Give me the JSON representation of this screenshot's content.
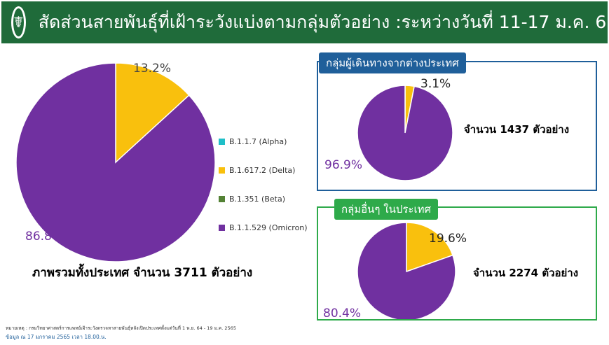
{
  "header": {
    "title": "สัดส่วนสายพันธุ์ที่เฝ้าระวังแบ่งตามกลุ่มตัวอย่าง :ระหว่างวันที่ 11-17 ม.ค. 65",
    "logo_icon": "moph-caduceus-icon"
  },
  "colors": {
    "header": "#1f6b3a",
    "delta": "#f9c00d",
    "omicron": "#7030a0",
    "alpha": "#1fbfc8",
    "beta": "#548235",
    "blue": "#1f5f9a",
    "green": "#2eaa4a"
  },
  "legend": [
    {
      "label": "B.1.1.7 (Alpha)",
      "color": "#1fbfc8"
    },
    {
      "label": "B.1.617.2 (Delta)",
      "color": "#f9c00d"
    },
    {
      "label": "B.1.351 (Beta)",
      "color": "#548235"
    },
    {
      "label": "B.1.1.529 (Omicron)",
      "color": "#7030a0"
    }
  ],
  "chart_data": [
    {
      "type": "pie",
      "name": "ภาพรวมทั้งประเทศ",
      "labels": [
        "B.1.617.2 (Delta)",
        "B.1.1.529 (Omicron)"
      ],
      "values": [
        13.2,
        86.8
      ],
      "value_labels": [
        "13.2%",
        "86.8%"
      ]
    },
    {
      "type": "pie",
      "name": "กลุ่มผู้เดินทางจากต่างประเทศ",
      "labels": [
        "B.1.617.2 (Delta)",
        "B.1.1.529 (Omicron)"
      ],
      "values": [
        3.1,
        96.9
      ],
      "value_labels": [
        "3.1%",
        "96.9%"
      ]
    },
    {
      "type": "pie",
      "name": "กลุ่มอื่นๆ ในประเทศ",
      "labels": [
        "B.1.617.2 (Delta)",
        "B.1.1.529 (Omicron)"
      ],
      "values": [
        19.6,
        80.4
      ],
      "value_labels": [
        "19.6%",
        "80.4%"
      ]
    }
  ],
  "overall": {
    "total_text": "ภาพรวมทั้งประเทศ จำนวน 3711 ตัวอย่าง"
  },
  "travelers": {
    "tab": "กลุ่มผู้เดินทางจากต่างประเทศ",
    "count_text": "จำนวน 1437 ตัวอย่าง"
  },
  "domestic": {
    "tab": "กลุ่มอื่นๆ ในประเทศ",
    "count_text": "จำนวน 2274 ตัวอย่าง"
  },
  "footer": {
    "note": "หมายเหตุ : กรมวิทยาศาสตร์การแพทย์เฝ้าระวังตรวจหาสายพันธุ์หลังเปิดประเทศตั้งแต่วันที่ 1 พ.ย. 64 - 19 ม.ค. 2565",
    "date": "ข้อมูล ณ 17 มกราคม 2565 เวลา 18.00.น."
  }
}
